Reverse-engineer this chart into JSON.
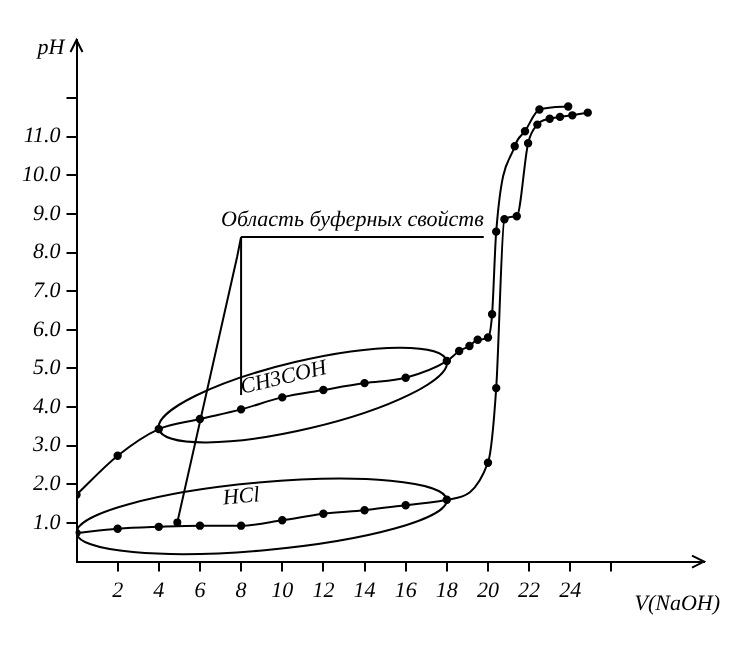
{
  "chart_data": {
    "type": "line",
    "xlabel": "V(NaOH)",
    "ylabel": "pH",
    "annotations": [
      "Область буферных свойств"
    ],
    "series": [
      {
        "name": "CH3COH",
        "color": "#000000",
        "x": [
          0,
          2,
          4,
          6,
          8,
          10,
          12,
          14,
          16,
          18,
          18.6,
          19.1,
          19.5,
          20,
          20.2,
          20.4,
          21.3,
          21.8,
          22.5,
          23.9
        ],
        "values": [
          1.73,
          2.74,
          3.43,
          3.69,
          3.94,
          4.25,
          4.44,
          4.62,
          4.76,
          5.19,
          5.45,
          5.58,
          5.74,
          5.8,
          6.4,
          8.54,
          10.75,
          11.14,
          11.7,
          11.78
        ]
      },
      {
        "name": "HCl",
        "color": "#000000",
        "x": [
          0,
          2,
          4,
          6,
          8,
          10,
          12,
          14,
          16,
          18,
          20,
          20.4,
          20.8,
          21.4,
          21.95,
          22.4,
          23,
          23.5,
          24.1,
          24.85
        ],
        "values": [
          0.74,
          0.85,
          0.9,
          0.93,
          0.93,
          1.07,
          1.24,
          1.33,
          1.46,
          1.6,
          2.56,
          4.49,
          8.86,
          8.94,
          10.83,
          11.31,
          11.46,
          11.51,
          11.55,
          11.62
        ]
      }
    ],
    "xlim": [
      0,
      30.5
    ],
    "xticks": [
      2,
      4,
      6,
      8,
      10,
      12,
      14,
      16,
      18,
      20,
      22,
      24,
      {
        "value": 26,
        "label": null
      }
    ],
    "ylim": [
      0,
      13.5
    ],
    "yticks": [
      {
        "value": 1,
        "label": "1.0"
      },
      {
        "value": 2,
        "label": "2.0"
      },
      {
        "value": 3,
        "label": "3.0"
      },
      {
        "value": 4,
        "label": "4.0"
      },
      {
        "value": 5,
        "label": "5.0"
      },
      {
        "value": 6,
        "label": "6.0"
      },
      {
        "value": 7,
        "label": "7.0"
      },
      {
        "value": 8,
        "label": "8.0"
      },
      {
        "value": 9,
        "label": "9.0"
      },
      {
        "value": 10,
        "label": "10.0"
      },
      {
        "value": 11,
        "label": "11.0"
      },
      {
        "value": 12,
        "label": null
      }
    ],
    "grid": false,
    "legend": false,
    "marker": "circle",
    "line_style": "solid"
  }
}
